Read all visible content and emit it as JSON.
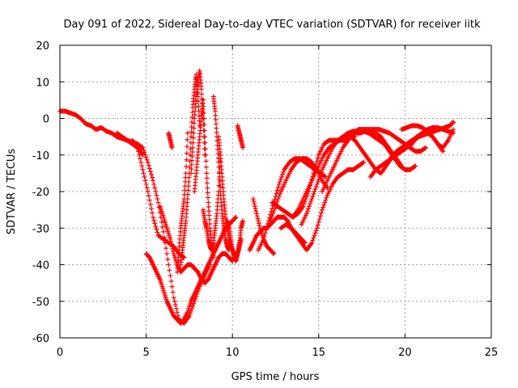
{
  "chart_data": {
    "type": "scatter",
    "title": "Day 091 of 2022, Sidereal Day-to-day VTEC variation (SDTVAR) for receiver iitk",
    "xlabel": "GPS time / hours",
    "ylabel": "SDTVAR / TECUs",
    "xlim": [
      0,
      25
    ],
    "ylim": [
      -60,
      20
    ],
    "xticks": [
      0,
      5,
      10,
      15,
      20,
      25
    ],
    "yticks": [
      -60,
      -50,
      -40,
      -30,
      -20,
      -10,
      0,
      10,
      20
    ],
    "grid": true,
    "marker": "plus",
    "color": "#ff0000",
    "series": [
      {
        "x": [
          0.0,
          0.3,
          0.6,
          0.9,
          1.2,
          1.5,
          1.8,
          2.1,
          2.4,
          2.7,
          3.0,
          3.3,
          3.6,
          3.9,
          4.2,
          4.5,
          4.8
        ],
        "y": [
          2,
          2,
          1.5,
          1,
          0,
          -1.5,
          -2,
          -3,
          -2.5,
          -3.5,
          -4,
          -5,
          -5.5,
          -6,
          -7,
          -8,
          -10
        ]
      },
      {
        "x": [
          3.3,
          3.6,
          3.9,
          4.2,
          4.5,
          4.8,
          5.1,
          5.4,
          5.7,
          6.0,
          6.3,
          6.6,
          6.9,
          7.2,
          7.5,
          7.8,
          8.1,
          8.4,
          8.7
        ],
        "y": [
          -4,
          -5,
          -6,
          -6.5,
          -7,
          -8,
          -12,
          -17,
          -23,
          -31,
          -40,
          -49,
          -55,
          -56,
          -54,
          -50,
          -46,
          -43,
          -40
        ]
      },
      {
        "x": [
          4.2,
          4.5,
          4.8,
          5.1,
          5.4,
          5.7,
          6.0,
          6.3,
          6.6,
          6.9,
          7.2
        ],
        "y": [
          -6,
          -8,
          -14,
          -20,
          -27,
          -32,
          -33,
          -34,
          -35,
          -37,
          -38
        ]
      },
      {
        "x": [
          5.0,
          5.2,
          5.4,
          5.6,
          5.8,
          6.0,
          6.2,
          6.4,
          6.6,
          6.8,
          7.0,
          7.2,
          7.4,
          7.6,
          7.8,
          8.0,
          8.2,
          8.4,
          8.6,
          8.8,
          9.0,
          9.2,
          9.4,
          9.6,
          9.8,
          10.0,
          10.2
        ],
        "y": [
          -37,
          -38,
          -40,
          -42,
          -44,
          -47,
          -50,
          -52,
          -54,
          -55,
          -56,
          -55,
          -53,
          -50,
          -48,
          -46,
          -44,
          -42,
          -40,
          -38,
          -36,
          -34,
          -32,
          -30,
          -29,
          -28,
          -27
        ]
      },
      {
        "x": [
          7.0,
          7.2,
          7.4,
          7.6,
          7.8,
          8.0,
          8.2,
          8.4,
          8.6,
          8.8,
          9.0,
          9.2,
          9.4,
          9.6,
          9.8,
          10.0
        ],
        "y": [
          -42,
          -41,
          -40,
          -40,
          -41,
          -42,
          -44,
          -45,
          -44,
          -42,
          -40,
          -38,
          -37,
          -37,
          -38,
          -39
        ]
      },
      {
        "x": [
          5.8,
          6.0,
          6.2,
          6.4,
          6.6,
          6.8,
          7.0
        ],
        "y": [
          -24,
          -27,
          -30,
          -33,
          -37,
          -40,
          -42
        ]
      },
      {
        "x": [
          6.8,
          6.9,
          7.0,
          7.1,
          7.2,
          7.3,
          7.4
        ],
        "y": [
          -42,
          -36,
          -30,
          -26,
          -22,
          -15,
          -4
        ]
      },
      {
        "x": [
          7.0,
          7.1,
          7.2,
          7.3,
          7.4,
          7.5,
          7.6,
          7.7,
          7.8,
          7.9,
          8.0,
          8.1
        ],
        "y": [
          -40,
          -36,
          -32,
          -28,
          -22,
          -15,
          -5,
          3,
          8,
          12,
          6,
          -2
        ]
      },
      {
        "x": [
          7.6,
          7.7,
          7.8,
          7.9,
          8.0,
          8.1,
          8.2,
          8.3,
          8.4
        ],
        "y": [
          -15,
          -8,
          0,
          6,
          10,
          13,
          8,
          0,
          -10
        ]
      },
      {
        "x": [
          7.8,
          7.9,
          8.0,
          8.1,
          8.2,
          8.3,
          8.4,
          8.5,
          8.6,
          8.7,
          8.8,
          8.9
        ],
        "y": [
          -20,
          -15,
          -10,
          -5,
          0,
          5,
          -5,
          -15,
          -23,
          -30,
          -35,
          -38
        ]
      },
      {
        "x": [
          8.3,
          8.4,
          8.5,
          8.6,
          8.7,
          8.8,
          8.9,
          9.0,
          9.1,
          9.2,
          9.3
        ],
        "y": [
          -25,
          -28,
          -30,
          -33,
          -35,
          -36,
          -34,
          -30,
          -26,
          -20,
          -10
        ]
      },
      {
        "x": [
          8.9,
          9.0,
          9.1,
          9.2,
          9.3,
          9.4,
          9.5,
          9.6,
          9.7,
          9.8
        ],
        "y": [
          6,
          2,
          -5,
          -12,
          -20,
          -26,
          -30,
          -33,
          -35,
          -36
        ]
      },
      {
        "x": [
          9.2,
          9.3,
          9.4,
          9.5,
          9.6,
          9.7,
          9.8,
          9.9,
          10.0,
          10.1,
          10.2,
          10.3,
          10.4,
          10.5
        ],
        "y": [
          -5,
          -10,
          -16,
          -22,
          -27,
          -30,
          -33,
          -35,
          -36,
          -37,
          -38,
          -37,
          -35,
          -33
        ]
      },
      {
        "x": [
          10.3,
          10.4,
          10.5,
          10.6
        ],
        "y": [
          -2,
          -4,
          -6,
          -8
        ]
      },
      {
        "x": [
          6.3,
          6.4,
          6.5
        ],
        "y": [
          -4,
          -6,
          -8
        ]
      },
      {
        "x": [
          9.7,
          9.8,
          9.9,
          10.0,
          10.1,
          10.2,
          10.3,
          10.4,
          10.5,
          10.6
        ],
        "y": [
          -28,
          -30,
          -33,
          -36,
          -38,
          -39,
          -37,
          -34,
          -30,
          -28
        ]
      },
      {
        "x": [
          11.0,
          11.2,
          11.4,
          11.6,
          11.8,
          12.0,
          12.2,
          12.4,
          12.6,
          12.8,
          13.0,
          13.2,
          13.4,
          13.6,
          13.8,
          14.0,
          14.2
        ],
        "y": [
          -36,
          -34,
          -32,
          -31,
          -30,
          -30,
          -29,
          -28,
          -27,
          -27,
          -27,
          -28,
          -30,
          -31,
          -32,
          -33,
          -34
        ]
      },
      {
        "x": [
          11.2,
          11.4,
          11.6,
          11.8,
          12.0,
          12.2,
          12.4
        ],
        "y": [
          -22,
          -26,
          -30,
          -33,
          -35,
          -36,
          -37
        ]
      },
      {
        "x": [
          11.5,
          11.8,
          12.1,
          12.4,
          12.7,
          13.0,
          13.3,
          13.6,
          13.9,
          14.2,
          14.5,
          14.8,
          15.1,
          15.4
        ],
        "y": [
          -36,
          -33,
          -28,
          -23,
          -18,
          -14,
          -12,
          -11,
          -11,
          -12,
          -13,
          -14,
          -15,
          -16
        ]
      },
      {
        "x": [
          12.2,
          12.5,
          12.8,
          13.1,
          13.4,
          13.7,
          14.0,
          14.3,
          14.6,
          14.9,
          15.2,
          15.5
        ],
        "y": [
          -28,
          -24,
          -20,
          -17,
          -14,
          -12,
          -11,
          -11,
          -12,
          -14,
          -17,
          -19
        ]
      },
      {
        "x": [
          12.8,
          13.1,
          13.4,
          13.7,
          14.0,
          14.3,
          14.6,
          14.9,
          15.2,
          15.5,
          15.8,
          16.1,
          16.4,
          16.7,
          17.0,
          17.3,
          17.6
        ],
        "y": [
          -30,
          -29,
          -30,
          -32,
          -34,
          -36,
          -34,
          -30,
          -25,
          -21,
          -18,
          -16,
          -15,
          -14,
          -14,
          -13,
          -12
        ]
      },
      {
        "x": [
          12.3,
          12.6,
          12.9,
          13.2,
          13.5,
          13.8,
          14.1,
          14.4,
          14.7,
          15.0,
          15.3,
          15.6,
          15.9,
          16.2,
          16.5,
          16.8,
          17.1
        ],
        "y": [
          -23,
          -24,
          -25,
          -26,
          -27,
          -26,
          -24,
          -20,
          -15,
          -10,
          -7,
          -6,
          -6,
          -6,
          -6,
          -5,
          -5
        ]
      },
      {
        "x": [
          13.5,
          13.8,
          14.1,
          14.4,
          14.7,
          15.0,
          15.3,
          15.6,
          15.9,
          16.2,
          16.5,
          16.8,
          17.1,
          17.4,
          17.7,
          18.0,
          18.3,
          18.6,
          18.9,
          19.2,
          19.5,
          19.8
        ],
        "y": [
          -27,
          -25,
          -22,
          -19,
          -16,
          -13,
          -10,
          -8,
          -7,
          -6,
          -5,
          -4.5,
          -4,
          -4,
          -3.5,
          -3.5,
          -4,
          -5,
          -7,
          -9,
          -11,
          -13
        ]
      },
      {
        "x": [
          14.0,
          14.3,
          14.6,
          14.9,
          15.2,
          15.5,
          15.8,
          16.1,
          16.4,
          16.7,
          17.0,
          17.3,
          17.6,
          17.9,
          18.2,
          18.5,
          18.8,
          19.1,
          19.4,
          19.7,
          20.0,
          20.3,
          20.6
        ],
        "y": [
          -29,
          -26,
          -22,
          -18,
          -14,
          -11,
          -8,
          -6,
          -5,
          -4,
          -3.5,
          -3.5,
          -3.5,
          -4,
          -5,
          -6,
          -7,
          -9,
          -11,
          -13,
          -14,
          -14,
          -13
        ]
      },
      {
        "x": [
          15.2,
          15.5,
          15.8,
          16.1,
          16.4,
          16.7,
          17.0,
          17.3,
          17.6,
          17.9,
          18.2,
          18.5,
          18.8,
          19.1,
          19.4,
          19.7,
          20.0,
          20.3,
          20.6,
          20.9,
          21.2
        ],
        "y": [
          -20,
          -17,
          -14,
          -11,
          -8,
          -6,
          -4,
          -3,
          -3,
          -3,
          -3,
          -3,
          -3.5,
          -4,
          -5,
          -6,
          -7,
          -8,
          -9,
          -9,
          -8
        ]
      },
      {
        "x": [
          16.5,
          16.8,
          17.1,
          17.4,
          17.7,
          18.0,
          18.3,
          18.6,
          18.9,
          19.2,
          19.5,
          19.8,
          20.1,
          20.4,
          20.7,
          21.0,
          21.3,
          21.6,
          21.9,
          22.2
        ],
        "y": [
          -6,
          -5,
          -6,
          -8,
          -10,
          -12,
          -14,
          -15,
          -13,
          -11,
          -9,
          -8,
          -7,
          -6,
          -5,
          -4,
          -4,
          -5,
          -7,
          -9
        ]
      },
      {
        "x": [
          18.0,
          18.3,
          18.6,
          18.9,
          19.2,
          19.5,
          19.8,
          20.1,
          20.4,
          20.7,
          21.0,
          21.3,
          21.6,
          21.9,
          22.2,
          22.5,
          22.8
        ],
        "y": [
          -16,
          -14,
          -13,
          -12,
          -11,
          -10,
          -9,
          -8,
          -7,
          -5,
          -4,
          -3,
          -2.5,
          -2.5,
          -3,
          -3.5,
          -4
        ]
      },
      {
        "x": [
          19.0,
          19.3,
          19.6,
          19.9,
          20.2,
          20.5,
          20.8,
          21.1,
          21.4,
          21.7,
          22.0,
          22.3,
          22.6,
          22.8
        ],
        "y": [
          -12,
          -10,
          -9,
          -8,
          -7,
          -6,
          -5,
          -4.5,
          -4,
          -3.5,
          -3,
          -2.5,
          -2,
          -1
        ]
      },
      {
        "x": [
          19.8,
          20.1,
          20.4,
          20.7,
          21.0,
          21.3,
          21.6,
          21.9,
          22.2,
          22.5,
          22.8
        ],
        "y": [
          -3,
          -2.5,
          -2,
          -2,
          -2.5,
          -3.5,
          -5,
          -7,
          -8,
          -6,
          -3
        ]
      }
    ]
  }
}
